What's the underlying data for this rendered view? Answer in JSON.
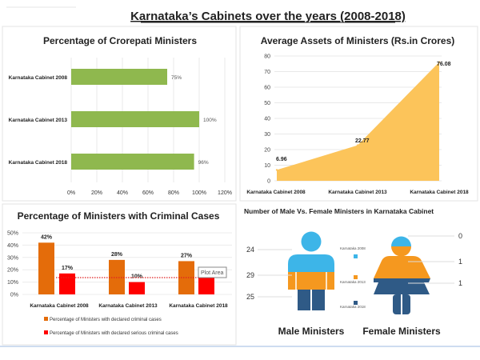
{
  "title": "Karnataka’s Cabinets over the years (2008-2018)",
  "chart_data": [
    {
      "type": "bar",
      "orientation": "horizontal",
      "title": "Percentage of Crorepati Ministers",
      "categories": [
        "Karnataka  Cabinet 2008",
        "Karnataka  Cabinet 2013",
        "Karnataka  Cabinet 2018"
      ],
      "values": [
        75,
        100,
        96
      ],
      "data_labels": [
        "75%",
        "100%",
        "96%"
      ],
      "xlim": [
        0,
        120
      ],
      "x_ticks": [
        "0%",
        "20%",
        "40%",
        "60%",
        "80%",
        "100%",
        "120%"
      ],
      "grid": true,
      "color": "#8fb84e"
    },
    {
      "type": "area",
      "title": "Average Assets of Ministers (Rs.in Crores)",
      "categories": [
        "Karnataka  Cabinet 2008",
        "Karnataka  Cabinet 2013",
        "Karnataka  Cabinet 2018"
      ],
      "values": [
        6.96,
        22.77,
        76.08
      ],
      "data_labels": [
        "6.96",
        "22.77",
        "76.08"
      ],
      "ylim": [
        0,
        80
      ],
      "y_ticks": [
        "0",
        "10",
        "20",
        "30",
        "40",
        "50",
        "60",
        "70",
        "80"
      ],
      "grid": true,
      "color": "#fcc45a"
    },
    {
      "type": "bar",
      "title": "Percentage of Ministers with Criminal Cases",
      "categories": [
        "Karnataka  Cabinet 2008",
        "Karnataka  Cabinet 2013",
        "Karnataka  Cabinet 2018"
      ],
      "series": [
        {
          "name": "Percentage  of Ministers with declared criminal cases",
          "values": [
            42,
            28,
            27
          ],
          "labels": [
            "42%",
            "28%",
            "27%"
          ],
          "color": "#e46c0a"
        },
        {
          "name": "Percentage of Ministers with declared serious criminal cases",
          "values": [
            17,
            10,
            15
          ],
          "labels": [
            "17%",
            "10%",
            ""
          ],
          "color": "#ff0000"
        }
      ],
      "ylim": [
        0,
        50
      ],
      "y_ticks": [
        "0%",
        "10%",
        "20%",
        "30%",
        "40%",
        "50%"
      ],
      "grid": true,
      "legend": "bottom",
      "tooltip": "Plot Area"
    },
    {
      "type": "pictograph",
      "title": "Number of Male Vs. Female Ministers  in Karnataka Cabinet",
      "legend": [
        {
          "label": "Karnataka 2008",
          "color": "#3db5e8"
        },
        {
          "label": "Karnataka 2013",
          "color": "#f5981f"
        },
        {
          "label": "Karnataka 2018",
          "color": "#2f5a86"
        }
      ],
      "male": {
        "label": "Male Ministers",
        "values": [
          "24",
          "29",
          "25"
        ]
      },
      "female": {
        "label": "Female Ministers",
        "values": [
          "0",
          "1",
          "1"
        ]
      }
    }
  ]
}
